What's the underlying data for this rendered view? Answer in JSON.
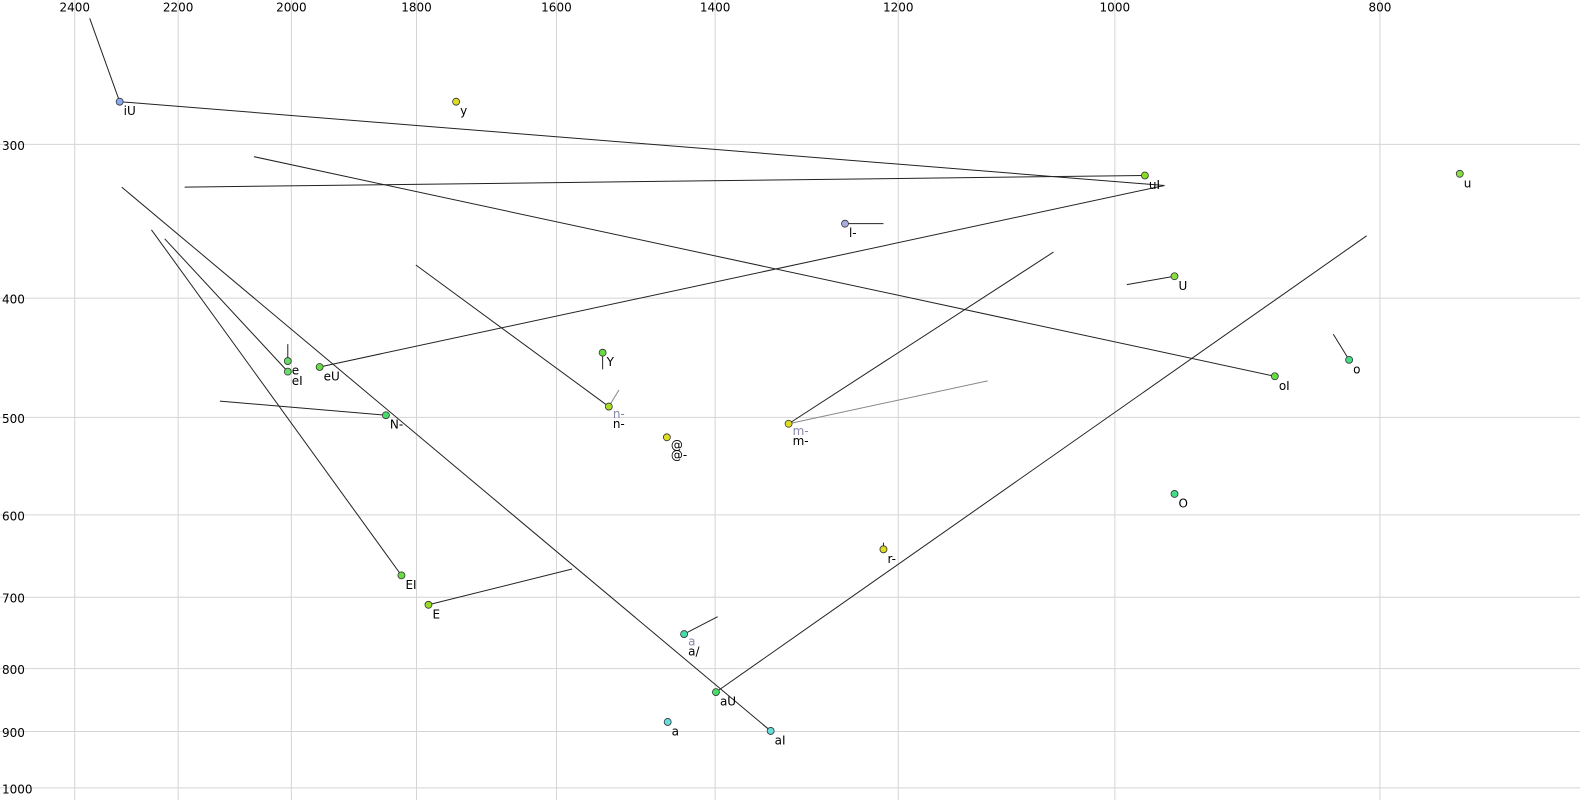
{
  "chart_data": {
    "type": "scatter",
    "xscale": "log",
    "yscale": "log",
    "grid": true,
    "xlim": [
      2430,
      676
    ],
    "ylim": [
      229,
      1023
    ],
    "xticks": [
      2400,
      2200,
      2000,
      1800,
      1600,
      1400,
      1200,
      1000,
      800
    ],
    "yticks": [
      300,
      400,
      500,
      600,
      700,
      800,
      900,
      1000
    ],
    "lines": [
      {
        "x": [
          2370,
          2311,
          959
        ],
        "y": [
          237,
          277,
          324
        ],
        "color": "#222"
      },
      {
        "x": [
          2188,
          975
        ],
        "y": [
          325,
          318
        ],
        "color": "#222"
      },
      {
        "x": [
          1953,
          959
        ],
        "y": [
          455,
          324
        ],
        "color": "#222"
      },
      {
        "x": [
          1255,
          1215
        ],
        "y": [
          348,
          348
        ],
        "color": "#222"
      },
      {
        "x": [
          951,
          990
        ],
        "y": [
          384,
          390
        ],
        "color": "#222"
      },
      {
        "x": [
          821,
          832
        ],
        "y": [
          449,
          428
        ],
        "color": "#222"
      },
      {
        "x": [
          2064,
          874
        ],
        "y": [
          307,
          463
        ],
        "color": "#222"
      },
      {
        "x": [
          1539,
          1539
        ],
        "y": [
          443,
          457
        ],
        "color": "#222"
      },
      {
        "x": [
          1801,
          1531
        ],
        "y": [
          376,
          490
        ],
        "color": "#222"
      },
      {
        "x": [
          1531,
          1518
        ],
        "y": [
          490,
          475
        ],
        "color": "#888"
      },
      {
        "x": [
          2006,
          2006
        ],
        "y": [
          450,
          436
        ],
        "color": "#222"
      },
      {
        "x": [
          2225,
          2006
        ],
        "y": [
          358,
          459
        ],
        "color": "#222"
      },
      {
        "x": [
          2307,
          1336
        ],
        "y": [
          325,
          899
        ],
        "color": "#222"
      },
      {
        "x": [
          2250,
          1823
        ],
        "y": [
          352,
          672
        ],
        "color": "#222"
      },
      {
        "x": [
          1399,
          809
        ],
        "y": [
          836,
          356
        ],
        "color": "#222"
      },
      {
        "x": [
          2124,
          1847
        ],
        "y": [
          485,
          498
        ],
        "color": "#222"
      },
      {
        "x": [
          1316,
          1053
        ],
        "y": [
          506,
          367
        ],
        "color": "#222"
      },
      {
        "x": [
          1316,
          1113
        ],
        "y": [
          506,
          467
        ],
        "color": "#888"
      },
      {
        "x": [
          1782,
          1579
        ],
        "y": [
          710,
          664
        ],
        "color": "#222"
      },
      {
        "x": [
          1437,
          1397
        ],
        "y": [
          750,
          726
        ],
        "color": "#222"
      },
      {
        "x": [
          1215,
          1215
        ],
        "y": [
          640,
          632
        ],
        "color": "#222"
      }
    ],
    "points": [
      {
        "labels": [
          "iU"
        ],
        "label_colors": [
          "#000"
        ],
        "x": 2311,
        "y": 277,
        "color": "#88aaee"
      },
      {
        "labels": [
          "y"
        ],
        "label_colors": [
          "#000"
        ],
        "x": 1741,
        "y": 277,
        "color": "#dddd22"
      },
      {
        "labels": [
          "uI"
        ],
        "label_colors": [
          "#000"
        ],
        "x": 975,
        "y": 318,
        "color": "#88dd22"
      },
      {
        "labels": [
          "l-"
        ],
        "label_colors": [
          "#000"
        ],
        "x": 1255,
        "y": 348,
        "color": "#aaaadd"
      },
      {
        "labels": [
          "u"
        ],
        "label_colors": [
          "#000"
        ],
        "x": 748,
        "y": 317,
        "color": "#88dd44"
      },
      {
        "labels": [
          "U"
        ],
        "label_colors": [
          "#000"
        ],
        "x": 951,
        "y": 384,
        "color": "#88dd44"
      },
      {
        "labels": [
          "o"
        ],
        "label_colors": [
          "#000"
        ],
        "x": 821,
        "y": 449,
        "color": "#44dd88"
      },
      {
        "labels": [
          "oI"
        ],
        "label_colors": [
          "#000"
        ],
        "x": 874,
        "y": 463,
        "color": "#66dd44"
      },
      {
        "labels": [
          "Y"
        ],
        "label_colors": [
          "#000"
        ],
        "x": 1539,
        "y": 443,
        "color": "#66dd44"
      },
      {
        "labels": [
          "n-",
          "n-"
        ],
        "label_colors": [
          "#8888aa",
          "#000"
        ],
        "x": 1531,
        "y": 490,
        "color": "#aadd22"
      },
      {
        "labels": [
          "e"
        ],
        "label_colors": [
          "#000"
        ],
        "x": 2006,
        "y": 450,
        "color": "#66dd66"
      },
      {
        "labels": [
          "eI"
        ],
        "label_colors": [
          "#000"
        ],
        "x": 2006,
        "y": 459,
        "color": "#66dd66"
      },
      {
        "labels": [
          "eU"
        ],
        "label_colors": [
          "#000"
        ],
        "x": 1953,
        "y": 455,
        "color": "#66dd44"
      },
      {
        "labels": [
          "N-"
        ],
        "label_colors": [
          "#000"
        ],
        "x": 1847,
        "y": 498,
        "color": "#44dd66"
      },
      {
        "labels": [
          "m-",
          "m-"
        ],
        "label_colors": [
          "#8888aa",
          "#000"
        ],
        "x": 1316,
        "y": 506,
        "color": "#dddd22"
      },
      {
        "labels": [
          "@",
          "@-"
        ],
        "label_colors": [
          "#000",
          "#000"
        ],
        "x": 1458,
        "y": 519,
        "color": "#dddd22"
      },
      {
        "labels": [
          "EI"
        ],
        "label_colors": [
          "#000"
        ],
        "x": 1823,
        "y": 672,
        "color": "#66dd44"
      },
      {
        "labels": [
          "E"
        ],
        "label_colors": [
          "#000"
        ],
        "x": 1782,
        "y": 710,
        "color": "#99dd22"
      },
      {
        "labels": [
          "a",
          "a/"
        ],
        "label_colors": [
          "#8888aa",
          "#000"
        ],
        "x": 1437,
        "y": 750,
        "color": "#44ddaa"
      },
      {
        "labels": [
          "aU"
        ],
        "label_colors": [
          "#000"
        ],
        "x": 1399,
        "y": 836,
        "color": "#44dd66"
      },
      {
        "labels": [
          "a"
        ],
        "label_colors": [
          "#000"
        ],
        "x": 1457,
        "y": 884,
        "color": "#66dddd"
      },
      {
        "labels": [
          "aI"
        ],
        "label_colors": [
          "#000"
        ],
        "x": 1336,
        "y": 899,
        "color": "#66dddd"
      },
      {
        "labels": [
          "O"
        ],
        "label_colors": [
          "#000"
        ],
        "x": 951,
        "y": 577,
        "color": "#44dd88"
      },
      {
        "labels": [
          "r-"
        ],
        "label_colors": [
          "#000"
        ],
        "x": 1215,
        "y": 640,
        "color": "#dddd22"
      }
    ]
  }
}
